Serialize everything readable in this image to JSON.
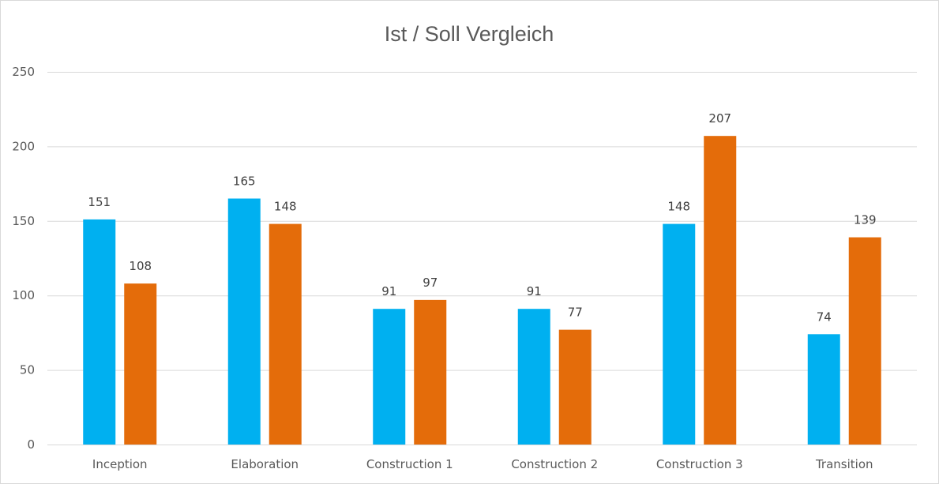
{
  "chart_data": {
    "type": "bar",
    "title": "Ist / Soll Vergleich",
    "categories": [
      "Inception",
      "Elaboration",
      "Construction 1",
      "Construction 2",
      "Construction 3",
      "Transition"
    ],
    "series": [
      {
        "values": [
          151,
          165,
          91,
          91,
          148,
          74
        ],
        "color": "#00b0f0"
      },
      {
        "values": [
          108,
          148,
          97,
          77,
          207,
          139
        ],
        "color": "#e46c0a"
      }
    ],
    "ylim": [
      0,
      250
    ],
    "yticks": [
      0,
      50,
      100,
      150,
      200,
      250
    ],
    "grid": true,
    "legend": "none",
    "data_labels": true
  }
}
